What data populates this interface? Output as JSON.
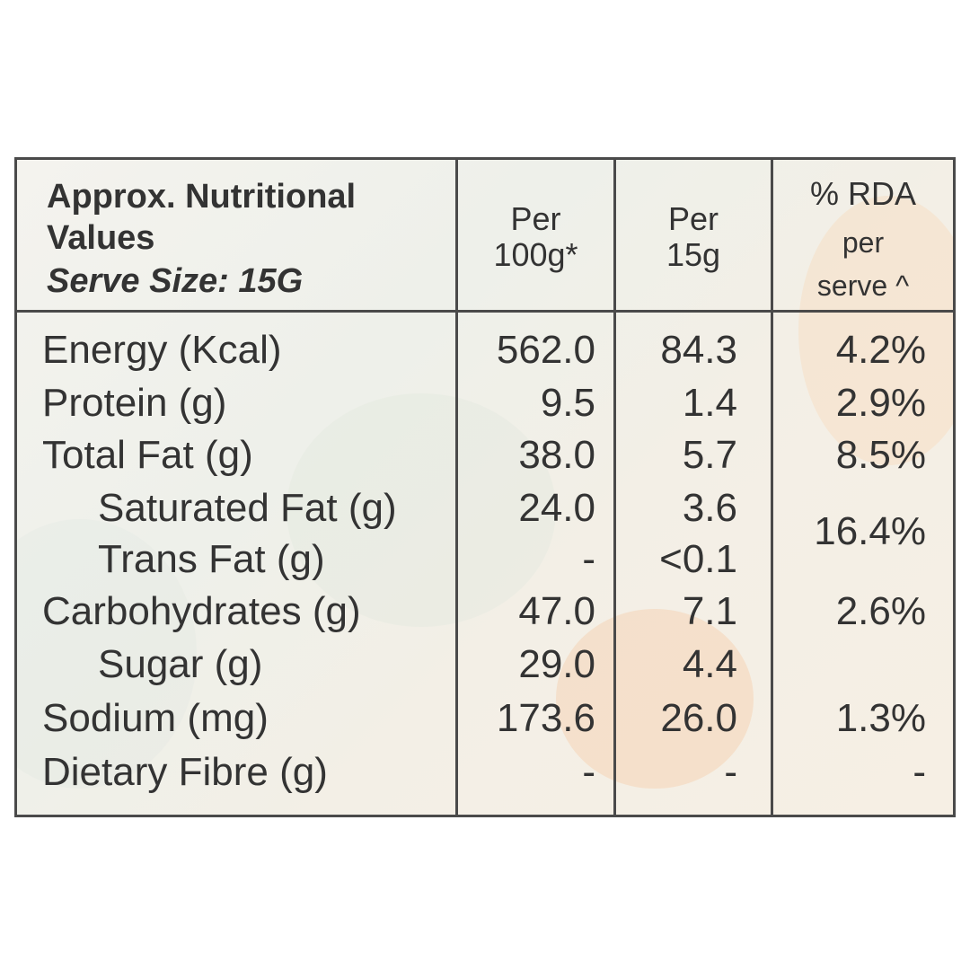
{
  "header": {
    "title_line1": "Approx. Nutritional",
    "title_line2": "Values",
    "serve_size": "Serve Size: 15G",
    "col_per100_line1": "Per",
    "col_per100_line2": "100g*",
    "col_per15_line1": "Per",
    "col_per15_line2": "15g",
    "col_rda_line1": "% RDA",
    "col_rda_line2": "per",
    "col_rda_line3": "serve ^"
  },
  "rows": [
    {
      "label": "Energy (Kcal)",
      "per100": "562.0",
      "per15": "84.3",
      "rda": "4.2%"
    },
    {
      "label": "Protein (g)",
      "per100": "9.5",
      "per15": "1.4",
      "rda": "2.9%"
    },
    {
      "label": "Total Fat (g)",
      "per100": "38.0",
      "per15": "5.7",
      "rda": "8.5%"
    },
    {
      "label": "Saturated Fat (g)",
      "per100": "24.0",
      "per15": "3.6"
    },
    {
      "label": "Trans Fat (g)",
      "per100": "-",
      "per15": "<0.1"
    },
    {
      "label": "Carbohydrates (g)",
      "per100": "47.0",
      "per15": "7.1",
      "rda": "2.6%"
    },
    {
      "label": "Sugar (g)",
      "per100": "29.0",
      "per15": "4.4"
    },
    {
      "label": "Sodium (mg)",
      "per100": "173.6",
      "per15": "26.0",
      "rda": "1.3%"
    },
    {
      "label": "Dietary Fibre (g)",
      "per100": "-",
      "per15": "-",
      "rda": "-"
    }
  ],
  "fat_merged_rda": "16.4%"
}
